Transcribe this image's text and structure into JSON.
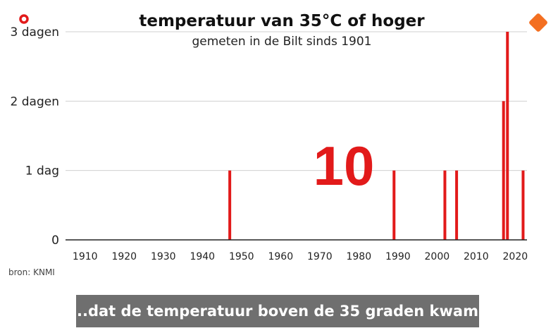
{
  "chart_data": {
    "type": "bar",
    "title": "temperatuur van 35°C of hoger",
    "subtitle": "gemeten in de Bilt sinds 1901",
    "source": "bron: KNMI",
    "xlim": [
      1905,
      2023
    ],
    "ylim": [
      0,
      3
    ],
    "x_ticks": [
      1910,
      1920,
      1930,
      1940,
      1950,
      1960,
      1970,
      1980,
      1990,
      2000,
      2010,
      2020
    ],
    "y_ticks": [
      {
        "value": 0,
        "label": "0"
      },
      {
        "value": 1,
        "label": "1 dag"
      },
      {
        "value": 2,
        "label": "2 dagen"
      },
      {
        "value": 3,
        "label": "3 dagen"
      }
    ],
    "grid": true,
    "bar_color": "#e21a1a",
    "points": [
      {
        "year": 1947,
        "days": 1
      },
      {
        "year": 1989,
        "days": 1
      },
      {
        "year": 2002,
        "days": 1
      },
      {
        "year": 2005,
        "days": 1
      },
      {
        "year": 2017,
        "days": 2
      },
      {
        "year": 2018,
        "days": 3
      },
      {
        "year": 2022,
        "days": 1
      }
    ],
    "annotation": "10"
  },
  "caption": "...dat de temperatuur boven de 35 graden kwam.",
  "logo": {
    "brand": "npo",
    "color": "#f36f21",
    "icon": "npo-logo"
  },
  "corner_icon": {
    "icon": "red-ring-icon",
    "color": "#e21a1a"
  }
}
